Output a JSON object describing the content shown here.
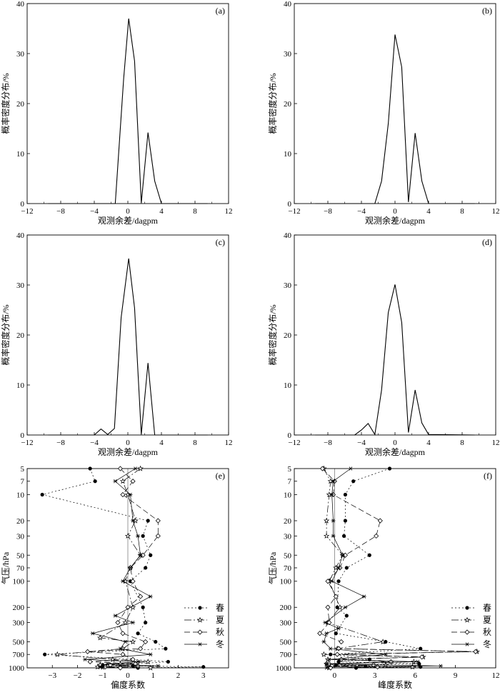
{
  "figure": {
    "title": ""
  },
  "chart_data": [
    {
      "id": "a",
      "type": "line",
      "panel_label": "(a)",
      "xlabel": "观测余差/dagpm",
      "ylabel": "概率密度分布/%",
      "xlim": [
        -12,
        12
      ],
      "ylim": [
        0,
        40
      ],
      "xticks": [
        -12,
        -8,
        -4,
        0,
        4,
        8,
        12
      ],
      "yticks": [
        0,
        10,
        20,
        30,
        40
      ],
      "series": [
        {
          "name": "PDF",
          "x": [
            -9.5,
            -1.5,
            -0.5,
            0.1,
            0.8,
            1.6,
            2.4,
            3.2,
            4.0,
            9.5
          ],
          "y": [
            0,
            0,
            25.0,
            37.0,
            28.5,
            0.1,
            14.2,
            4.5,
            0,
            0
          ]
        }
      ]
    },
    {
      "id": "b",
      "type": "line",
      "panel_label": "(b)",
      "xlabel": "观测余差/dagpm",
      "ylabel": "概率密度分布/%",
      "xlim": [
        -12,
        12
      ],
      "ylim": [
        0,
        40
      ],
      "xticks": [
        -12,
        -8,
        -4,
        0,
        4,
        8,
        12
      ],
      "yticks": [
        0,
        10,
        20,
        30,
        40
      ],
      "series": [
        {
          "name": "PDF",
          "x": [
            -9.5,
            -2.4,
            -1.6,
            -0.8,
            0,
            0.8,
            1.6,
            2.4,
            3.2,
            4.0,
            9.5
          ],
          "y": [
            0,
            0,
            4.5,
            16.0,
            33.8,
            27.3,
            0.3,
            14.1,
            4.5,
            0,
            0
          ]
        }
      ]
    },
    {
      "id": "c",
      "type": "line",
      "panel_label": "(c)",
      "xlabel": "观测余差/dagpm",
      "ylabel": "概率密度分布/%",
      "xlim": [
        -12,
        12
      ],
      "ylim": [
        0,
        40
      ],
      "xticks": [
        -12,
        -8,
        -4,
        0,
        4,
        8,
        12
      ],
      "yticks": [
        0,
        10,
        20,
        30,
        40
      ],
      "series": [
        {
          "name": "PDF",
          "x": [
            -9.5,
            -4.0,
            -3.2,
            -2.4,
            -1.6,
            -0.8,
            0.1,
            0.8,
            1.6,
            2.4,
            3.2,
            9.5
          ],
          "y": [
            0,
            0,
            1.2,
            0.1,
            1.3,
            23.5,
            35.3,
            25.4,
            0.1,
            14.4,
            0,
            0
          ]
        }
      ]
    },
    {
      "id": "d",
      "type": "line",
      "panel_label": "(d)",
      "xlabel": "观测余差/dagpm",
      "ylabel": "概率密度分布/%",
      "xlim": [
        -12,
        12
      ],
      "ylim": [
        0,
        40
      ],
      "xticks": [
        -12,
        -8,
        -4,
        0,
        4,
        8,
        12
      ],
      "yticks": [
        0,
        10,
        20,
        30,
        40
      ],
      "series": [
        {
          "name": "PDF",
          "x": [
            -9.5,
            -4.8,
            -4.0,
            -3.2,
            -2.4,
            -1.6,
            -0.8,
            0,
            0.8,
            1.6,
            2.4,
            3.2,
            4.0,
            9.5
          ],
          "y": [
            0,
            0,
            1.0,
            2.3,
            0.1,
            9.0,
            24.5,
            30.1,
            22.5,
            0.5,
            9.0,
            2.4,
            0.1,
            0
          ]
        }
      ]
    },
    {
      "id": "e",
      "type": "line",
      "panel_label": "(e)",
      "xlabel": "偏度系数",
      "ylabel": "气压/hPa",
      "xlim": [
        -4,
        4
      ],
      "xticks": [
        -3,
        -2,
        -1,
        0,
        1,
        2,
        3
      ],
      "pressure_levels": [
        5,
        7,
        10,
        20,
        30,
        50,
        70,
        100,
        200,
        300,
        500,
        700,
        1000
      ],
      "yticks": [
        5,
        7,
        10,
        20,
        30,
        50,
        70,
        100,
        200,
        300,
        500,
        700,
        1000
      ],
      "legend_position": "right-middle",
      "series": [
        {
          "name": "春",
          "marker": "dot",
          "dash": "2,3",
          "points": [
            [
              -1.5,
              5
            ],
            [
              -1.3,
              7
            ],
            [
              -3.4,
              10
            ],
            [
              0.8,
              20
            ],
            [
              0.6,
              30
            ],
            [
              0.9,
              50
            ],
            [
              0.7,
              70
            ],
            [
              0.1,
              100
            ],
            [
              0.6,
              200
            ],
            [
              0.7,
              300
            ],
            [
              0.4,
              400
            ],
            [
              1.1,
              500
            ],
            [
              1.5,
              600
            ],
            [
              -3.3,
              700
            ],
            [
              0.2,
              800
            ],
            [
              1.6,
              850
            ],
            [
              0.3,
              900
            ],
            [
              -1.0,
              925
            ],
            [
              0.2,
              950
            ],
            [
              3.0,
              975
            ],
            [
              0.4,
              1000
            ]
          ]
        },
        {
          "name": "夏",
          "marker": "star",
          "dash": "10,3,2,3",
          "points": [
            [
              0.5,
              5
            ],
            [
              -0.2,
              7
            ],
            [
              0,
              10
            ],
            [
              0.3,
              20
            ],
            [
              0,
              30
            ],
            [
              0.5,
              50
            ],
            [
              0.1,
              70
            ],
            [
              -0.1,
              100
            ],
            [
              0.2,
              200
            ],
            [
              -0.1,
              300
            ],
            [
              -1.1,
              450
            ],
            [
              0.2,
              500
            ],
            [
              -0.2,
              600
            ],
            [
              -2.8,
              700
            ],
            [
              -0.6,
              800
            ],
            [
              0.8,
              850
            ],
            [
              -0.3,
              900
            ],
            [
              -1.1,
              925
            ],
            [
              0.3,
              950
            ],
            [
              -1.2,
              975
            ],
            [
              0.9,
              1000
            ]
          ]
        },
        {
          "name": "秋",
          "marker": "diamond",
          "dash": "8,4",
          "points": [
            [
              -0.3,
              5
            ],
            [
              0.2,
              7
            ],
            [
              -0.2,
              10
            ],
            [
              1.2,
              20
            ],
            [
              1.2,
              30
            ],
            [
              0.6,
              50
            ],
            [
              0.1,
              70
            ],
            [
              0.2,
              100
            ],
            [
              0.5,
              150
            ],
            [
              0,
              200
            ],
            [
              -0.4,
              300
            ],
            [
              -0.2,
              400
            ],
            [
              0.7,
              500
            ],
            [
              0.5,
              600
            ],
            [
              -1.6,
              650
            ],
            [
              -0.2,
              700
            ],
            [
              0.2,
              800
            ],
            [
              -1.5,
              850
            ],
            [
              0.3,
              900
            ],
            [
              -0.7,
              925
            ],
            [
              0.4,
              950
            ],
            [
              -0.9,
              975
            ],
            [
              -0.3,
              1000
            ]
          ]
        },
        {
          "name": "冬",
          "marker": "asterisk",
          "dash": "",
          "points": [
            [
              0.3,
              5
            ],
            [
              -0.5,
              7
            ],
            [
              0.1,
              10
            ],
            [
              0.2,
              20
            ],
            [
              0.4,
              30
            ],
            [
              0.5,
              50
            ],
            [
              0.1,
              70
            ],
            [
              -0.2,
              100
            ],
            [
              0.9,
              150
            ],
            [
              -0.5,
              250
            ],
            [
              0.2,
              300
            ],
            [
              -1.4,
              400
            ],
            [
              -0.1,
              500
            ],
            [
              -0.3,
              600
            ],
            [
              0.9,
              700
            ],
            [
              -1.7,
              800
            ],
            [
              0.4,
              850
            ],
            [
              -0.8,
              900
            ],
            [
              1.2,
              950
            ],
            [
              -1.1,
              975
            ],
            [
              -1.0,
              1000
            ]
          ]
        }
      ]
    },
    {
      "id": "f",
      "type": "line",
      "panel_label": "(f)",
      "xlabel": "峰度系数",
      "ylabel": "气压/hPa",
      "xlim": [
        -3,
        12
      ],
      "xticks": [
        0,
        3,
        6,
        9,
        12
      ],
      "pressure_levels": [
        5,
        7,
        10,
        20,
        30,
        50,
        70,
        100,
        200,
        300,
        500,
        700,
        1000
      ],
      "yticks": [
        5,
        7,
        10,
        20,
        30,
        50,
        70,
        100,
        200,
        300,
        500,
        700,
        1000
      ],
      "legend_position": "right-middle",
      "series": [
        {
          "name": "春",
          "marker": "dot",
          "dash": "2,3",
          "points": [
            [
              4.1,
              5
            ],
            [
              1.4,
              7
            ],
            [
              0.8,
              10
            ],
            [
              0.8,
              20
            ],
            [
              0.7,
              30
            ],
            [
              2.6,
              50
            ],
            [
              0.9,
              70
            ],
            [
              0.3,
              100
            ],
            [
              0.2,
              200
            ],
            [
              0.9,
              250
            ],
            [
              0.1,
              400
            ],
            [
              3.8,
              500
            ],
            [
              6.4,
              600
            ],
            [
              -0.3,
              700
            ],
            [
              2.6,
              800
            ],
            [
              0.3,
              850
            ],
            [
              6.3,
              900
            ],
            [
              0.1,
              925
            ],
            [
              2.3,
              950
            ],
            [
              6.4,
              975
            ],
            [
              1.6,
              1000
            ]
          ]
        },
        {
          "name": "夏",
          "marker": "star",
          "dash": "10,3,2,3",
          "points": [
            [
              -0.8,
              5
            ],
            [
              -0.3,
              7
            ],
            [
              -0.4,
              10
            ],
            [
              -0.6,
              20
            ],
            [
              -0.6,
              30
            ],
            [
              0.6,
              50
            ],
            [
              0.1,
              70
            ],
            [
              -0.4,
              100
            ],
            [
              0.4,
              200
            ],
            [
              -0.5,
              300
            ],
            [
              3.6,
              500
            ],
            [
              0.2,
              600
            ],
            [
              10.6,
              650
            ],
            [
              -0.8,
              700
            ],
            [
              6.6,
              750
            ],
            [
              -0.5,
              800
            ],
            [
              5.9,
              850
            ],
            [
              -0.6,
              900
            ],
            [
              3.8,
              925
            ],
            [
              -0.5,
              950
            ],
            [
              5.8,
              975
            ],
            [
              -0.4,
              1000
            ]
          ]
        },
        {
          "name": "秋",
          "marker": "diamond",
          "dash": "8,4",
          "points": [
            [
              -0.9,
              5
            ],
            [
              0,
              7
            ],
            [
              -0.1,
              10
            ],
            [
              3.4,
              20
            ],
            [
              3.1,
              30
            ],
            [
              0.8,
              50
            ],
            [
              0.4,
              70
            ],
            [
              -0.5,
              100
            ],
            [
              0.1,
              150
            ],
            [
              -0.5,
              200
            ],
            [
              -0.4,
              300
            ],
            [
              -1.1,
              400
            ],
            [
              0.5,
              500
            ],
            [
              0.3,
              600
            ],
            [
              10.5,
              650
            ],
            [
              0.2,
              700
            ],
            [
              6.5,
              750
            ],
            [
              0.5,
              800
            ],
            [
              4.2,
              850
            ],
            [
              -0.4,
              900
            ],
            [
              2.9,
              925
            ],
            [
              -0.2,
              950
            ],
            [
              3.2,
              975
            ],
            [
              -0.3,
              1000
            ]
          ]
        },
        {
          "name": "冬",
          "marker": "asterisk",
          "dash": "",
          "points": [
            [
              1.2,
              5
            ],
            [
              -0.1,
              7
            ],
            [
              -0.2,
              10
            ],
            [
              -0.1,
              20
            ],
            [
              -0.1,
              30
            ],
            [
              0.6,
              50
            ],
            [
              0.3,
              70
            ],
            [
              -0.2,
              100
            ],
            [
              2.2,
              150
            ],
            [
              0.8,
              200
            ],
            [
              -0.7,
              300
            ],
            [
              0.3,
              350
            ],
            [
              -0.6,
              400
            ],
            [
              -0.8,
              500
            ],
            [
              -0.3,
              600
            ],
            [
              3.8,
              700
            ],
            [
              -0.4,
              800
            ],
            [
              6.2,
              850
            ],
            [
              -0.6,
              900
            ],
            [
              7.9,
              950
            ],
            [
              -0.5,
              975
            ],
            [
              -0.6,
              1000
            ]
          ]
        }
      ]
    }
  ]
}
